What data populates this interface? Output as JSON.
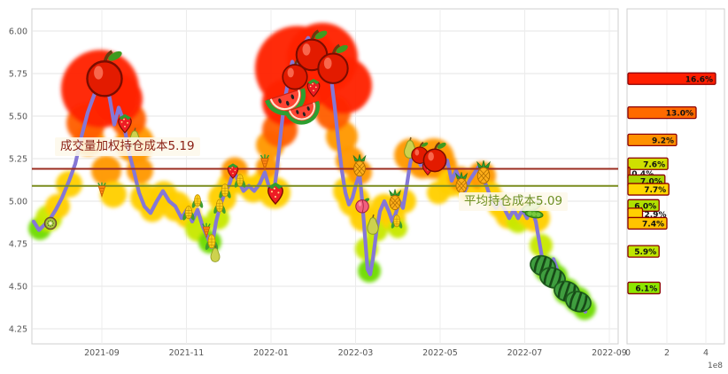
{
  "page": {
    "background": "#ffffff"
  },
  "y_axis": {
    "ticks": [
      "6.00",
      "5.75",
      "5.50",
      "5.25",
      "5.00",
      "4.75",
      "4.50",
      "4.25"
    ]
  },
  "x_axis": {
    "ticks": [
      "2021-09",
      "2021-11",
      "2022-01",
      "2022-03",
      "2022-05",
      "2022-07",
      "2022-09"
    ]
  },
  "right_axis": {
    "ticks": [
      "0",
      "2",
      "4"
    ],
    "scale_label": "1e8"
  },
  "annotations": {
    "vwap": {
      "text": "成交量加权持仓成本5.19",
      "value": 5.19,
      "text_color": "#8b2015",
      "line_color": "#9b2c20"
    },
    "avg": {
      "text": "平均持仓成本5.09",
      "value": 5.09,
      "text_color": "#6b8e23",
      "line_color": "#7a8c1e"
    }
  },
  "chart_data": {
    "type": "line",
    "ylim": [
      4.16,
      6.13
    ],
    "series": [
      {
        "name": "price",
        "color": "#8577d6",
        "points": [
          [
            38,
            4.88
          ],
          [
            44,
            4.83
          ],
          [
            50,
            4.86
          ],
          [
            57,
            4.9
          ],
          [
            63,
            4.95
          ],
          [
            70,
            5.02
          ],
          [
            78,
            5.12
          ],
          [
            85,
            5.22
          ],
          [
            92,
            5.38
          ],
          [
            99,
            5.52
          ],
          [
            106,
            5.62
          ],
          [
            112,
            5.7
          ],
          [
            118,
            5.74
          ],
          [
            124,
            5.6
          ],
          [
            129,
            5.45
          ],
          [
            134,
            5.55
          ],
          [
            139,
            5.48
          ],
          [
            145,
            5.3
          ],
          [
            151,
            5.18
          ],
          [
            157,
            5.05
          ],
          [
            163,
            4.97
          ],
          [
            170,
            4.93
          ],
          [
            177,
            5.0
          ],
          [
            184,
            5.06
          ],
          [
            191,
            5.0
          ],
          [
            198,
            4.97
          ],
          [
            205,
            4.9
          ],
          [
            211,
            4.95
          ],
          [
            217,
            4.88
          ],
          [
            223,
            4.95
          ],
          [
            229,
            4.85
          ],
          [
            235,
            4.78
          ],
          [
            239,
            4.73
          ],
          [
            244,
            4.88
          ],
          [
            249,
            4.98
          ],
          [
            254,
            5.05
          ],
          [
            259,
            5.1
          ],
          [
            264,
            5.18
          ],
          [
            269,
            5.12
          ],
          [
            275,
            5.06
          ],
          [
            281,
            5.09
          ],
          [
            287,
            5.06
          ],
          [
            293,
            5.1
          ],
          [
            299,
            5.17
          ],
          [
            304,
            5.08
          ],
          [
            309,
            5.04
          ],
          [
            313,
            5.2
          ],
          [
            317,
            5.4
          ],
          [
            321,
            5.58
          ],
          [
            326,
            5.72
          ],
          [
            330,
            5.82
          ],
          [
            334,
            5.76
          ],
          [
            338,
            5.85
          ],
          [
            343,
            5.92
          ],
          [
            348,
            5.96
          ],
          [
            353,
            5.88
          ],
          [
            358,
            5.8
          ],
          [
            362,
            5.86
          ],
          [
            366,
            5.76
          ],
          [
            370,
            5.8
          ],
          [
            374,
            5.72
          ],
          [
            378,
            5.55
          ],
          [
            382,
            5.35
          ],
          [
            386,
            5.18
          ],
          [
            390,
            5.05
          ],
          [
            394,
            4.98
          ],
          [
            398,
            5.02
          ],
          [
            402,
            5.1
          ],
          [
            406,
            5.16
          ],
          [
            409,
            5.0
          ],
          [
            412,
            4.8
          ],
          [
            415,
            4.6
          ],
          [
            418,
            4.57
          ],
          [
            421,
            4.66
          ],
          [
            425,
            4.82
          ],
          [
            429,
            4.94
          ],
          [
            434,
            5.0
          ],
          [
            439,
            4.94
          ],
          [
            443,
            4.88
          ],
          [
            447,
            4.93
          ],
          [
            451,
            5.0
          ],
          [
            455,
            4.96
          ],
          [
            459,
            5.08
          ],
          [
            463,
            5.22
          ],
          [
            467,
            5.3
          ],
          [
            471,
            5.26
          ],
          [
            475,
            5.21
          ],
          [
            479,
            5.25
          ],
          [
            484,
            5.2
          ],
          [
            488,
            5.27
          ],
          [
            492,
            5.22
          ],
          [
            496,
            5.26
          ],
          [
            500,
            5.2
          ],
          [
            505,
            5.24
          ],
          [
            510,
            5.12
          ],
          [
            515,
            5.18
          ],
          [
            520,
            5.12
          ],
          [
            525,
            5.06
          ],
          [
            530,
            5.12
          ],
          [
            535,
            5.16
          ],
          [
            540,
            5.2
          ],
          [
            545,
            5.14
          ],
          [
            550,
            5.08
          ],
          [
            555,
            5.0
          ],
          [
            560,
            4.96
          ],
          [
            565,
            5.0
          ],
          [
            570,
            4.95
          ],
          [
            575,
            4.9
          ],
          [
            580,
            4.95
          ],
          [
            585,
            4.9
          ],
          [
            590,
            4.95
          ],
          [
            595,
            4.9
          ],
          [
            600,
            4.96
          ],
          [
            605,
            4.88
          ],
          [
            609,
            4.76
          ],
          [
            613,
            4.64
          ],
          [
            617,
            4.56
          ],
          [
            621,
            4.6
          ],
          [
            625,
            4.66
          ],
          [
            629,
            4.6
          ],
          [
            633,
            4.52
          ],
          [
            637,
            4.47
          ],
          [
            641,
            4.51
          ],
          [
            645,
            4.46
          ],
          [
            649,
            4.5
          ],
          [
            653,
            4.43
          ],
          [
            657,
            4.38
          ],
          [
            661,
            4.35
          ]
        ]
      }
    ],
    "cost_lines": [
      {
        "name": "vwap",
        "value": 5.19,
        "color": "#9b2c20"
      },
      {
        "name": "avg",
        "value": 5.09,
        "color": "#7a8c1e"
      }
    ],
    "halo_palette": {
      "red": "#ff2400",
      "orangered": "#ff5f00",
      "orange": "#ff9800",
      "yellow": "#ffcf00",
      "yellowgreen": "#c8e800",
      "green": "#6fdc00"
    },
    "halos": [
      [
        45,
        4.84,
        13,
        "green"
      ],
      [
        55,
        4.9,
        15,
        "yellowgreen"
      ],
      [
        65,
        4.97,
        14,
        "yellow"
      ],
      [
        78,
        5.1,
        15,
        "yellow"
      ],
      [
        100,
        5.36,
        18,
        "orange"
      ],
      [
        152,
        5.34,
        22,
        "orange"
      ],
      [
        120,
        5.18,
        17,
        "orange"
      ],
      [
        128,
        5.04,
        15,
        "yellow"
      ],
      [
        158,
        5.18,
        15,
        "orange"
      ],
      [
        163,
        5.02,
        16,
        "yellow"
      ],
      [
        172,
        4.95,
        14,
        "yellow"
      ],
      [
        97,
        5.46,
        22,
        "orangered"
      ],
      [
        145,
        5.48,
        20,
        "orangered"
      ],
      [
        113,
        5.66,
        44,
        "red"
      ],
      [
        133,
        5.6,
        28,
        "red"
      ],
      [
        185,
        5.04,
        15,
        "yellow"
      ],
      [
        199,
        4.97,
        17,
        "yellow"
      ],
      [
        212,
        4.92,
        15,
        "yellow"
      ],
      [
        224,
        4.84,
        15,
        "yellowgreen"
      ],
      [
        237,
        4.76,
        13,
        "green"
      ],
      [
        246,
        4.9,
        13,
        "yellowgreen"
      ],
      [
        251,
        5.02,
        16,
        "yellow"
      ],
      [
        259,
        5.1,
        13,
        "yellow"
      ],
      [
        265,
        5.18,
        15,
        "orange"
      ],
      [
        273,
        5.1,
        12,
        "yellow"
      ],
      [
        286,
        5.07,
        15,
        "yellow"
      ],
      [
        296,
        5.11,
        13,
        "yellow"
      ],
      [
        302,
        5.2,
        13,
        "orange"
      ],
      [
        310,
        5.05,
        18,
        "yellow"
      ],
      [
        305,
        5.33,
        16,
        "orange"
      ],
      [
        386,
        5.38,
        18,
        "orange"
      ],
      [
        395,
        5.24,
        16,
        "orange"
      ],
      [
        392,
        5.06,
        16,
        "yellow"
      ],
      [
        400,
        5.0,
        18,
        "yellow"
      ],
      [
        406,
        5.17,
        14,
        "orange"
      ],
      [
        316,
        5.42,
        20,
        "orangered"
      ],
      [
        376,
        5.52,
        20,
        "orangered"
      ],
      [
        322,
        5.58,
        26,
        "red"
      ],
      [
        336,
        5.78,
        48,
        "red"
      ],
      [
        364,
        5.84,
        40,
        "red"
      ],
      [
        388,
        5.68,
        32,
        "red"
      ],
      [
        410,
        4.9,
        15,
        "yellow"
      ],
      [
        414,
        4.72,
        13,
        "yellowgreen"
      ],
      [
        417,
        4.59,
        13,
        "green"
      ],
      [
        425,
        4.83,
        13,
        "yellowgreen"
      ],
      [
        434,
        4.96,
        16,
        "yellow"
      ],
      [
        444,
        4.9,
        14,
        "yellow"
      ],
      [
        449,
        4.84,
        11,
        "yellowgreen"
      ],
      [
        456,
        5.0,
        14,
        "yellow"
      ],
      [
        464,
        5.27,
        19,
        "orange"
      ],
      [
        477,
        5.22,
        17,
        "orange"
      ],
      [
        490,
        5.25,
        23,
        "orange"
      ],
      [
        500,
        5.21,
        16,
        "orange"
      ],
      [
        495,
        5.05,
        13,
        "yellow"
      ],
      [
        510,
        5.11,
        16,
        "yellow"
      ],
      [
        520,
        5.13,
        14,
        "orange"
      ],
      [
        530,
        5.06,
        13,
        "yellow"
      ],
      [
        544,
        5.15,
        16,
        "orange"
      ],
      [
        553,
        5.05,
        13,
        "yellow"
      ],
      [
        565,
        4.97,
        14,
        "yellow"
      ],
      [
        575,
        4.92,
        16,
        "yellow"
      ],
      [
        585,
        4.88,
        13,
        "yellowgreen"
      ],
      [
        596,
        4.93,
        14,
        "yellow"
      ],
      [
        605,
        4.9,
        16,
        "yellow"
      ],
      [
        611,
        4.74,
        13,
        "yellowgreen"
      ],
      [
        618,
        4.6,
        15,
        "green"
      ],
      [
        628,
        4.56,
        13,
        "green"
      ],
      [
        640,
        4.47,
        15,
        "green"
      ],
      [
        652,
        4.42,
        15,
        "green"
      ],
      [
        660,
        4.37,
        13,
        "green"
      ]
    ],
    "fruit_types": [
      "apple",
      "strawberry",
      "watermelon",
      "melon",
      "pineapple",
      "pear",
      "corn",
      "carrot",
      "kiwi",
      "peach",
      "peapod"
    ],
    "fruits": [
      [
        57,
        4.87,
        0.8,
        "kiwi"
      ],
      [
        118,
        5.72,
        1.7,
        "apple"
      ],
      [
        141,
        5.46,
        1.0,
        "strawberry"
      ],
      [
        152,
        5.36,
        0.85,
        "pear"
      ],
      [
        115,
        5.06,
        0.7,
        "carrot"
      ],
      [
        213,
        4.93,
        0.75,
        "corn"
      ],
      [
        223,
        5.0,
        0.7,
        "corn"
      ],
      [
        233,
        4.82,
        0.7,
        "carrot"
      ],
      [
        239,
        4.76,
        0.8,
        "corn"
      ],
      [
        243,
        4.68,
        0.7,
        "pear"
      ],
      [
        248,
        4.97,
        0.75,
        "corn"
      ],
      [
        254,
        5.06,
        0.75,
        "corn"
      ],
      [
        263,
        5.18,
        0.8,
        "strawberry"
      ],
      [
        271,
        5.12,
        0.7,
        "corn"
      ],
      [
        299,
        5.22,
        0.75,
        "carrot"
      ],
      [
        311,
        5.05,
        1.15,
        "strawberry"
      ],
      [
        322,
        5.62,
        1.5,
        "watermelon"
      ],
      [
        341,
        5.55,
        1.3,
        "watermelon"
      ],
      [
        333,
        5.73,
        1.2,
        "apple"
      ],
      [
        352,
        5.86,
        1.5,
        "apple"
      ],
      [
        376,
        5.78,
        1.45,
        "apple"
      ],
      [
        354,
        5.67,
        0.95,
        "strawberry"
      ],
      [
        406,
        5.2,
        0.85,
        "pineapple"
      ],
      [
        409,
        4.97,
        0.85,
        "peach"
      ],
      [
        421,
        4.85,
        0.85,
        "pear"
      ],
      [
        446,
        5.0,
        0.8,
        "pineapple"
      ],
      [
        448,
        4.88,
        0.7,
        "corn"
      ],
      [
        463,
        5.3,
        0.9,
        "pear"
      ],
      [
        474,
        5.27,
        0.8,
        "apple"
      ],
      [
        483,
        5.2,
        0.8,
        "strawberry"
      ],
      [
        491,
        5.24,
        1.1,
        "apple"
      ],
      [
        521,
        5.1,
        0.8,
        "pineapple"
      ],
      [
        546,
        5.16,
        0.9,
        "pineapple"
      ],
      [
        601,
        4.95,
        1.0,
        "peapod"
      ],
      [
        613,
        4.62,
        1.1,
        "melon"
      ],
      [
        624,
        4.55,
        1.1,
        "melon"
      ],
      [
        640,
        4.47,
        1.1,
        "melon"
      ],
      [
        653,
        4.41,
        1.1,
        "melon"
      ]
    ],
    "volume_profile": {
      "type": "bar",
      "orientation": "horizontal",
      "unit": "1e8",
      "xlim": [
        0,
        5
      ],
      "bars": [
        {
          "price": 5.72,
          "percent": "16.6%",
          "value_e8": 4.5,
          "color": "#ff1e00"
        },
        {
          "price": 5.52,
          "percent": "13.0%",
          "value_e8": 3.5,
          "color": "#ff6a00"
        },
        {
          "price": 5.36,
          "percent": "9.2%",
          "value_e8": 2.5,
          "color": "#ff9100"
        },
        {
          "price": 5.22,
          "percent": "7.6%",
          "value_e8": 2.05,
          "color": "#cfe000"
        },
        {
          "price": 5.165,
          "percent": "0.4%",
          "value_e8": 0.1,
          "color": "#ffb400"
        },
        {
          "price": 5.12,
          "percent": "7.0%",
          "value_e8": 1.9,
          "color": "#a8d500"
        },
        {
          "price": 5.07,
          "percent": "7.7%",
          "value_e8": 2.1,
          "color": "#ffd700"
        },
        {
          "price": 4.975,
          "percent": "6.0%",
          "value_e8": 1.6,
          "color": "#b0e000"
        },
        {
          "price": 4.925,
          "percent": "2.9%",
          "value_e8": 0.75,
          "color": "#ffd000"
        },
        {
          "price": 4.87,
          "percent": "7.4%",
          "value_e8": 2.0,
          "color": "#ffc400"
        },
        {
          "price": 4.705,
          "percent": "5.9%",
          "value_e8": 1.6,
          "color": "#bfe600"
        },
        {
          "price": 4.49,
          "percent": "6.1%",
          "value_e8": 1.65,
          "color": "#8ce600"
        }
      ]
    }
  }
}
